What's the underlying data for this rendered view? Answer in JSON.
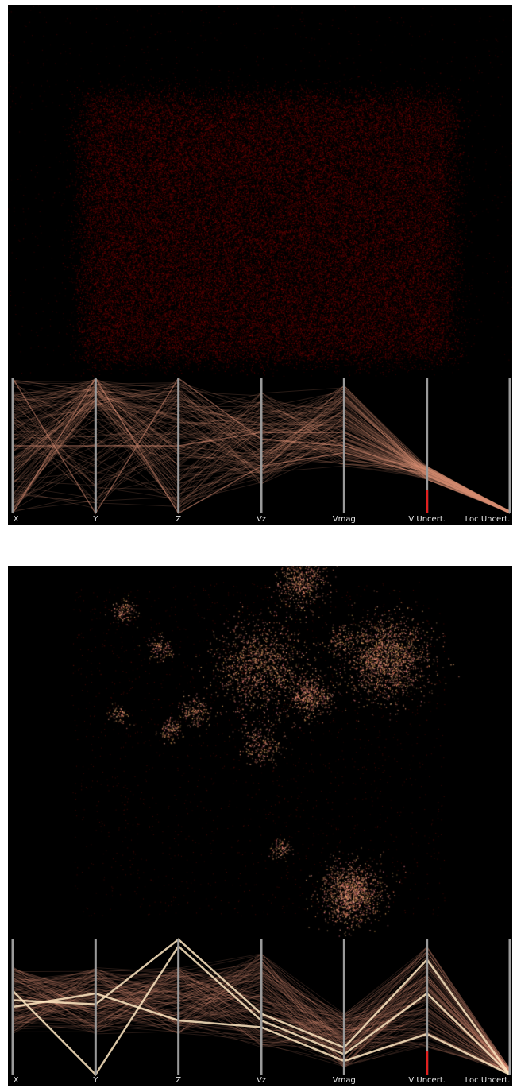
{
  "colors": {
    "background": "#000000",
    "density_low": "#8a0000",
    "density_high": "#f4b690",
    "pc_line": "#d98e74",
    "pc_line_bright": "#ffe7c2",
    "axis_line": "#9a9a9a",
    "axis_highlight": "#e02020"
  },
  "axes": [
    "X",
    "Y",
    "Z",
    "Vz",
    "Vmag",
    "V Uncert.",
    "Loc Uncert."
  ],
  "chart_data": [
    {
      "type": "scatter",
      "panel": "top",
      "description_kind": "uniform-density-point-cloud",
      "x_range": [
        0,
        1
      ],
      "y_range": [
        0,
        1
      ],
      "extent": {
        "x": [
          0.15,
          0.88
        ],
        "y": [
          0.05,
          0.75
        ]
      },
      "clusters": [],
      "parallel_coordinates": {
        "axes": [
          "X",
          "Y",
          "Z",
          "Vz",
          "Vmag",
          "V Uncert.",
          "Loc Uncert."
        ],
        "highlighted_axis": "V Uncert.",
        "line_values": [
          {
            "X": 0.0,
            "Y": 1.0,
            "Z": 0.0,
            "Vz": 0.35,
            "Vmag": 0.45,
            "V Uncert.": 0.28,
            "Loc Uncert.": 0.0
          },
          {
            "X": 1.0,
            "Y": 0.0,
            "Z": 1.0,
            "Vz": 0.55,
            "Vmag": 0.5,
            "V Uncert.": 0.3,
            "Loc Uncert.": 0.0
          },
          {
            "X": 0.5,
            "Y": 0.5,
            "Z": 0.5,
            "Vz": 0.6,
            "Vmag": 0.6,
            "V Uncert.": 0.32,
            "Loc Uncert.": 0.0
          }
        ]
      }
    },
    {
      "type": "scatter",
      "panel": "bottom",
      "description_kind": "clustered-point-cloud",
      "x_range": [
        0,
        1
      ],
      "y_range": [
        0,
        1
      ],
      "clusters": [
        {
          "x": 0.58,
          "y": 0.96,
          "spread": 0.025,
          "count": 180
        },
        {
          "x": 0.23,
          "y": 0.88,
          "spread": 0.012,
          "count": 40
        },
        {
          "x": 0.3,
          "y": 0.78,
          "spread": 0.012,
          "count": 40
        },
        {
          "x": 0.5,
          "y": 0.73,
          "spread": 0.045,
          "count": 420
        },
        {
          "x": 0.75,
          "y": 0.75,
          "spread": 0.04,
          "count": 560
        },
        {
          "x": 0.6,
          "y": 0.65,
          "spread": 0.02,
          "count": 160
        },
        {
          "x": 0.68,
          "y": 0.12,
          "spread": 0.03,
          "count": 420
        },
        {
          "x": 0.5,
          "y": 0.52,
          "spread": 0.02,
          "count": 80
        },
        {
          "x": 0.37,
          "y": 0.61,
          "spread": 0.015,
          "count": 60
        },
        {
          "x": 0.32,
          "y": 0.56,
          "spread": 0.012,
          "count": 40
        },
        {
          "x": 0.54,
          "y": 0.24,
          "spread": 0.01,
          "count": 30
        },
        {
          "x": 0.22,
          "y": 0.6,
          "spread": 0.01,
          "count": 25
        },
        {
          "x": 0.66,
          "y": 0.8,
          "spread": 0.015,
          "count": 40
        }
      ],
      "parallel_coordinates": {
        "axes": [
          "X",
          "Y",
          "Z",
          "Vz",
          "Vmag",
          "V Uncert.",
          "Loc Uncert."
        ],
        "highlighted_axis": "V Uncert.",
        "line_values": [
          {
            "X": 0.55,
            "Y": 0.52,
            "Z": 1.0,
            "Vz": 0.45,
            "Vmag": 0.2,
            "V Uncert.": 0.85,
            "Loc Uncert.": 0.0
          },
          {
            "X": 0.62,
            "Y": 0.0,
            "Z": 0.95,
            "Vz": 0.4,
            "Vmag": 0.15,
            "V Uncert.": 0.6,
            "Loc Uncert.": 0.0
          },
          {
            "X": 0.5,
            "Y": 0.6,
            "Z": 0.4,
            "Vz": 0.35,
            "Vmag": 0.1,
            "V Uncert.": 0.3,
            "Loc Uncert.": 0.0
          }
        ]
      }
    }
  ]
}
